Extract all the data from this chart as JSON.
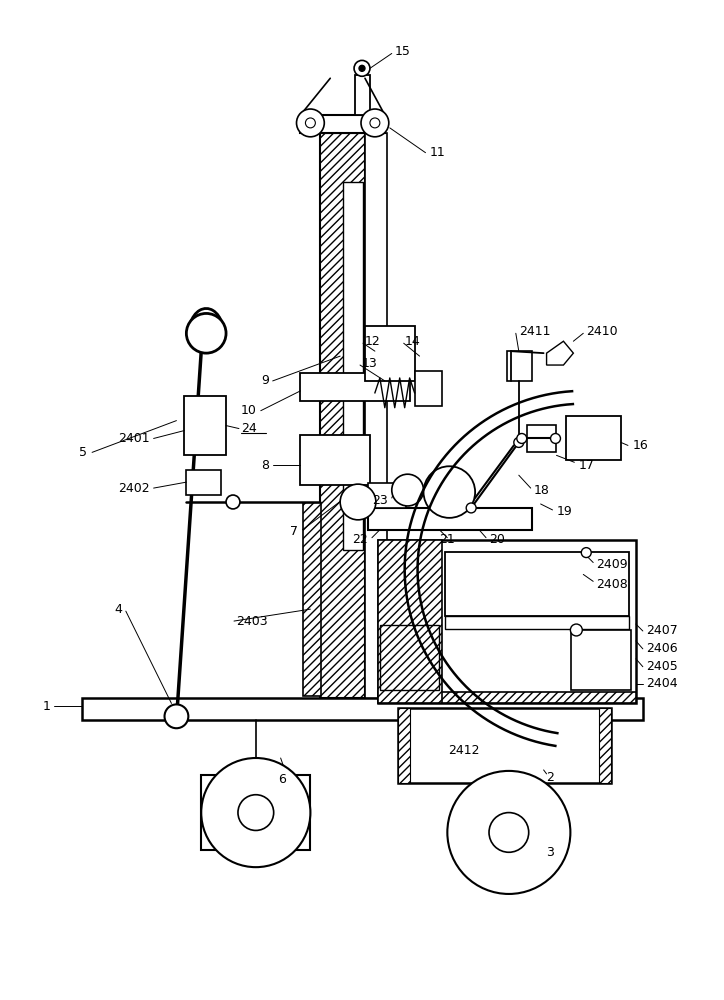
{
  "bg_color": "#ffffff",
  "line_color": "#000000",
  "fig_width": 7.24,
  "fig_height": 10.0
}
